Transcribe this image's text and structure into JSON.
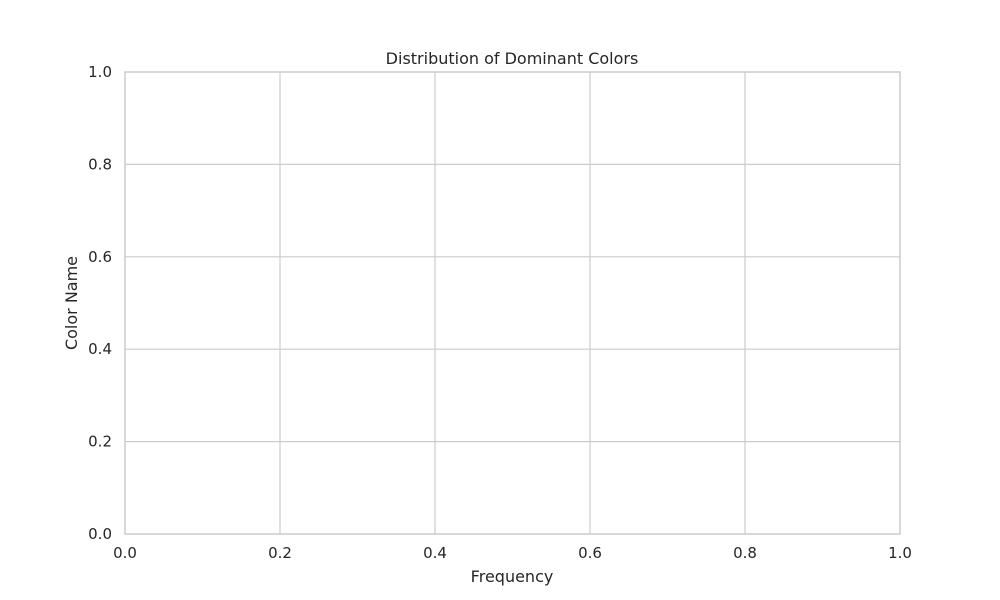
{
  "chart_data": {
    "type": "bar",
    "orientation": "horizontal",
    "title": "Distribution of Dominant Colors",
    "xlabel": "Frequency",
    "ylabel": "Color Name",
    "categories": [],
    "values": [],
    "xlim": [
      0.0,
      1.0
    ],
    "ylim": [
      0.0,
      1.0
    ],
    "xticks": [
      "0.0",
      "0.2",
      "0.4",
      "0.6",
      "0.8",
      "1.0"
    ],
    "yticks": [
      "0.0",
      "0.2",
      "0.4",
      "0.6",
      "0.8",
      "1.0"
    ],
    "grid": true,
    "legend": "none",
    "colors": {
      "grid": "#cccccc",
      "frame": "#cccccc",
      "background": "#ffffff",
      "text": "#262626"
    }
  }
}
